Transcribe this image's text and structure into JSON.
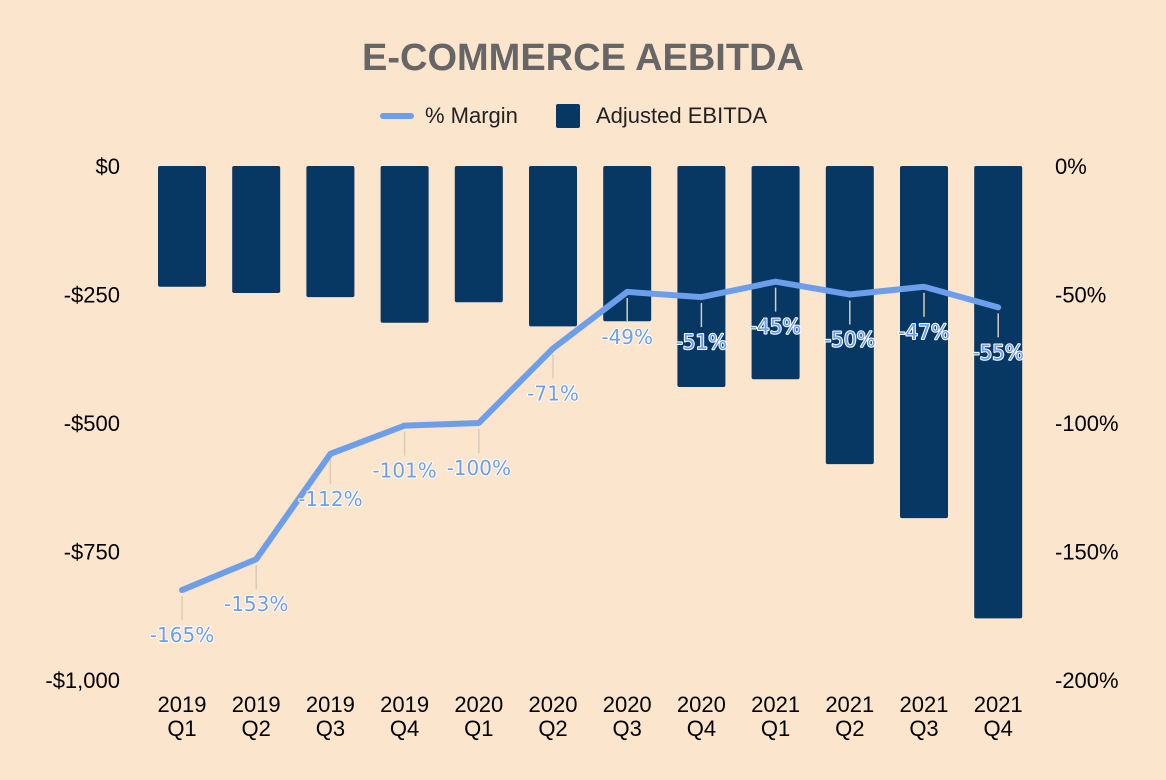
{
  "chart_data": {
    "type": "bar",
    "title": "E-COMMERCE AEBITDA",
    "categories": [
      [
        "2019",
        "Q1"
      ],
      [
        "2019",
        "Q2"
      ],
      [
        "2019",
        "Q3"
      ],
      [
        "2019",
        "Q4"
      ],
      [
        "2020",
        "Q1"
      ],
      [
        "2020",
        "Q2"
      ],
      [
        "2020",
        "Q3"
      ],
      [
        "2020",
        "Q4"
      ],
      [
        "2021",
        "Q1"
      ],
      [
        "2021",
        "Q2"
      ],
      [
        "2021",
        "Q3"
      ],
      [
        "2021",
        "Q4"
      ]
    ],
    "series": [
      {
        "name": "Adjusted EBITDA",
        "type": "bar",
        "axis": "left",
        "color": "#073763",
        "values": [
          -235,
          -247,
          -255,
          -305,
          -265,
          -312,
          -302,
          -430,
          -415,
          -580,
          -685,
          -880
        ]
      },
      {
        "name": "% Margin",
        "type": "line",
        "axis": "right",
        "color": "#6D9EEB",
        "values": [
          -165,
          -153,
          -112,
          -101,
          -100,
          -71,
          -49,
          -51,
          -45,
          -50,
          -47,
          -55
        ],
        "labels": [
          "-165%",
          "-153%",
          "-112%",
          "-101%",
          "-100%",
          "-71%",
          "-49%",
          "-51%",
          "-45%",
          "-50%",
          "-47%",
          "-55%"
        ]
      }
    ],
    "y_left": {
      "range": [
        -1000,
        0
      ],
      "ticks": [
        0,
        -250,
        -500,
        -750,
        -1000
      ],
      "tick_labels": [
        "$0",
        "-$250",
        "-$500",
        "-$750",
        "-$1,000"
      ]
    },
    "y_right": {
      "range": [
        -200,
        0
      ],
      "ticks": [
        0,
        -50,
        -100,
        -150,
        -200
      ],
      "tick_labels": [
        "0%",
        "-50%",
        "-100%",
        "-150%",
        "-200%"
      ]
    },
    "legend": {
      "position": "top",
      "items": [
        "% Margin",
        "Adjusted EBITDA"
      ]
    },
    "grid": false,
    "colors": {
      "background": "#FCE5CD",
      "title": "#666666",
      "bar": "#073763",
      "line": "#6D9EEB"
    }
  }
}
